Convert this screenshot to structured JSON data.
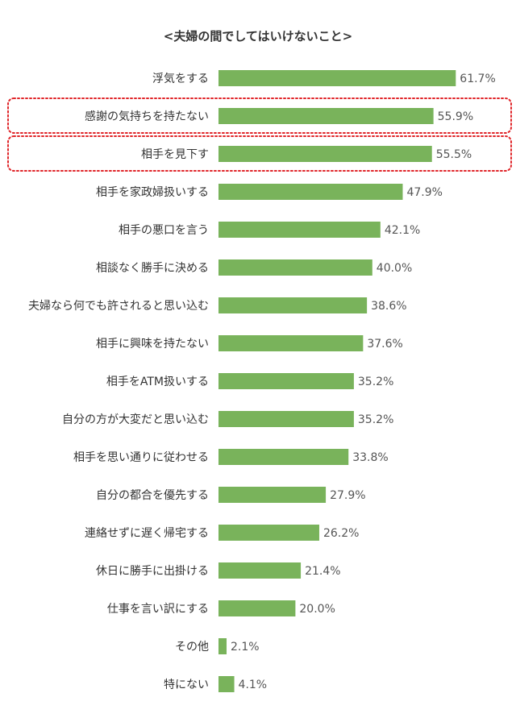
{
  "chart_data": {
    "type": "bar",
    "orientation": "horizontal",
    "title": "<夫婦の間でしてはいけないこと>",
    "categories": [
      "浮気をする",
      "感謝の気持ちを持たない",
      "相手を見下す",
      "相手を家政婦扱いする",
      "相手の悪口を言う",
      "相談なく勝手に決める",
      "夫婦なら何でも許されると思い込む",
      "相手に興味を持たない",
      "相手をATM扱いする",
      "自分の方が大変だと思い込む",
      "相手を思い通りに従わせる",
      "自分の都合を優先する",
      "連絡せずに遅く帰宅する",
      "休日に勝手に出掛ける",
      "仕事を言い訳にする",
      "その他",
      "特にない"
    ],
    "values": [
      61.7,
      55.9,
      55.5,
      47.9,
      42.1,
      40.0,
      38.6,
      37.6,
      35.2,
      35.2,
      33.8,
      27.9,
      26.2,
      21.4,
      20.0,
      2.1,
      4.1
    ],
    "value_labels": [
      "61.7%",
      "55.9%",
      "55.5%",
      "47.9%",
      "42.1%",
      "40.0%",
      "38.6%",
      "37.6%",
      "35.2%",
      "35.2%",
      "33.8%",
      "27.9%",
      "26.2%",
      "21.4%",
      "20.0%",
      "2.1%",
      "4.1%"
    ],
    "highlighted_indices": [
      1,
      2
    ],
    "xlim": [
      0,
      100
    ],
    "grid": false,
    "legend": "none",
    "bar_color": "#79b35b",
    "highlight_color": "#e0262a"
  }
}
